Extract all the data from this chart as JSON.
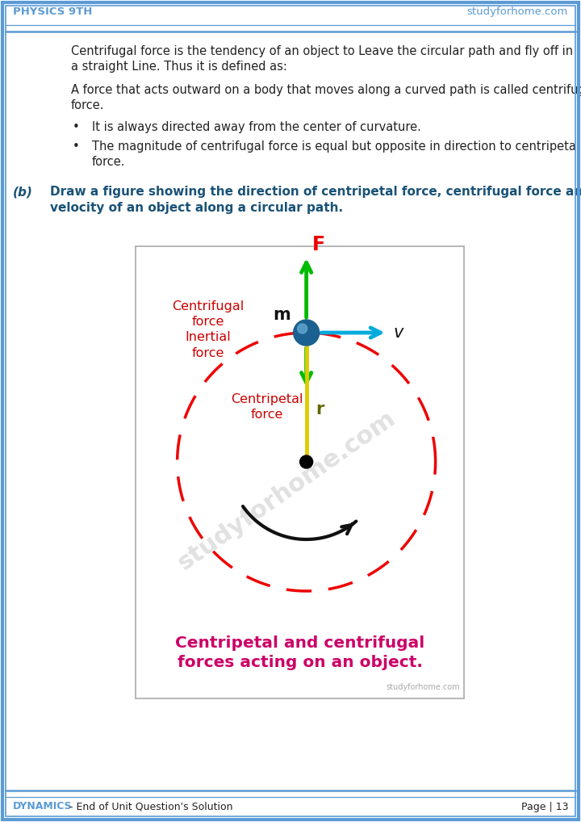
{
  "bg_color": "#ffffff",
  "border_color": "#5b9bd5",
  "header_text_left": "PHYSICS 9TH",
  "header_text_right": "studyforhome.com",
  "footer_left_bold": "DYNAMICS",
  "footer_left_rest": " - End of Unit Question's Solution",
  "footer_right": "Page | 13",
  "header_footer_color": "#5b9bd5",
  "body_text_color": "#222222",
  "question_label_color": "#1a5276",
  "para1_line1": "Centrifugal force is the tendency of an object to Leave the circular path and fly off in",
  "para1_line2": "a straight Line. Thus it is defined as:",
  "para2_line1": "A force that acts outward on a body that moves along a curved path is called centrifugal,",
  "para2_line2": "force.",
  "bullet1": "It is always directed away from the center of curvature.",
  "bullet2_line1": "The magnitude of centrifugal force is equal but opposite in direction to centripetal",
  "bullet2_line2": "force.",
  "question_b_label": "(b)",
  "question_b_line1": "Draw a figure showing the direction of centripetal force, centrifugal force and",
  "question_b_line2": "velocity of an object along a circular path.",
  "diagram_caption_line1": "Centripetal and centrifugal",
  "diagram_caption_line2": "forces acting on an object.",
  "diagram_caption_color": "#cc0066",
  "centrifugal_label_color": "#cc0000",
  "centripetal_label_color": "#cc0000",
  "circle_color": "#ee0000",
  "arrow_up_color": "#00bb00",
  "arrow_down_color": "#ddcc00",
  "arrow_right_color": "#00aadd",
  "mass_dot_color": "#1a6090",
  "center_dot_color": "#000000",
  "radius_line_color": "#ddcc00",
  "F_label_color": "#ee0000",
  "v_label_color": "#111111",
  "m_label_color": "#111111",
  "r_label_color": "#666600",
  "curve_arrow_color": "#111111",
  "watermark_color": "#c8c8c8",
  "diag_border_color": "#aaaaaa",
  "diag_bg_color": "#ffffff"
}
